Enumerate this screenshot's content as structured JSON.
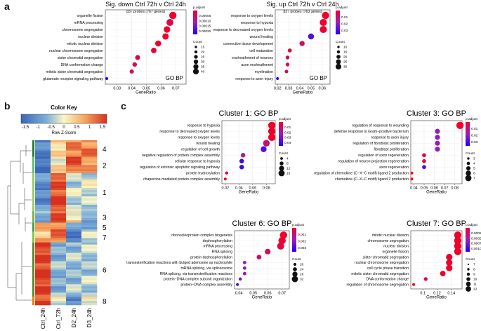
{
  "panel_labels": [
    "a",
    "b",
    "c"
  ],
  "colors": {
    "low": "#1d00ff",
    "mid": "#9b1fb5",
    "high": "#f0002a"
  },
  "chart_data": [
    {
      "id": "a_down",
      "type": "scatter",
      "subtype": "dotplot",
      "title": "Sig. down Ctrl 72h v Ctrl 24h",
      "subtitle": "837 probes (767 genes)",
      "xlabel": "GeneRatio",
      "annotation": "GO BP",
      "xlim": [
        0.022,
        0.077
      ],
      "xticks": [
        0.03,
        0.04,
        0.05,
        0.06,
        0.07
      ],
      "categories": [
        "organelle fission",
        "mRNA processing",
        "chromosome segregation",
        "nuclear division",
        "mitotic nuclear division",
        "nuclear chromosome segregation",
        "sister chromatid segregation",
        "DNA conformation change",
        "mitotic sister chromatid segregation",
        "glutamate receptor signaling pathway"
      ],
      "x": [
        0.068,
        0.066,
        0.064,
        0.063,
        0.058,
        0.055,
        0.044,
        0.042,
        0.04,
        0.023
      ],
      "count": [
        43,
        41,
        38,
        37,
        35,
        32,
        28,
        26,
        24,
        15
      ],
      "p_adjust": [
        1e-05,
        3e-05,
        1e-05,
        1e-05,
        1e-05,
        2e-05,
        3e-05,
        4e-05,
        4e-05,
        0.00022
      ],
      "color_legend": {
        "title": "p.adjust",
        "ticks": [
          "0.00005",
          "0.00010",
          "0.00015",
          "0.00020"
        ],
        "range": [
          1e-05,
          0.00022
        ]
      },
      "size_legend": {
        "title": "Count",
        "values": [
          15,
          20,
          25,
          30,
          35,
          40
        ]
      }
    },
    {
      "id": "a_up",
      "type": "scatter",
      "subtype": "dotplot",
      "title": "Sig. up Ctrl 72h v Ctrl 24h",
      "subtitle": "827 probes (763 genes)",
      "xlabel": "GeneRatio",
      "annotation": "GO BP",
      "xlim": [
        0.018,
        0.067
      ],
      "xticks": [
        0.02,
        0.03,
        0.04,
        0.05,
        0.06
      ],
      "categories": [
        "response to oxygen levels",
        "response to hypoxia",
        "response to decreased oxygen levels",
        "wound healing",
        "connective tissue development",
        "cell maturation",
        "ensheathment of neurons",
        "axon ensheathment",
        "myelination",
        "response to axon injury"
      ],
      "x": [
        0.063,
        0.061,
        0.061,
        0.05,
        0.042,
        0.031,
        0.029,
        0.029,
        0.028,
        0.02
      ],
      "count": [
        33,
        32,
        32,
        26,
        22,
        16,
        15,
        15,
        14,
        10
      ],
      "p_adjust": [
        0.001,
        0.002,
        0.002,
        0.03,
        0.008,
        0.004,
        0.006,
        0.006,
        0.008,
        0.037
      ],
      "color_legend": {
        "title": "p.adjust",
        "ticks": [
          "0.01",
          "0.02",
          "0.03"
        ],
        "range": [
          0.001,
          0.038
        ]
      },
      "size_legend": {
        "title": "Count",
        "values": [
          10,
          15,
          20,
          25,
          30
        ]
      }
    },
    {
      "id": "c1",
      "type": "scatter",
      "subtype": "dotplot",
      "title": "Cluster 1: GO BP",
      "xlabel": "GeneRatio",
      "xlim": [
        0.015,
        0.093
      ],
      "xticks": [
        0.02,
        0.04,
        0.06,
        0.08
      ],
      "categories": [
        "response to hypoxia",
        "response to decreased oxygen levels",
        "response to oxygen levels",
        "wound healing",
        "regulation of cell growth",
        "negative regulation of protein complex assembly",
        "cellular response to hypoxia",
        "regulation of extrinsic apoptotic signaling pathway",
        "protein hydroxylation",
        "chaperone-mediated protein complex assembly"
      ],
      "x": [
        0.088,
        0.088,
        0.088,
        0.08,
        0.076,
        0.046,
        0.044,
        0.044,
        0.022,
        0.02
      ],
      "count": [
        16,
        16,
        16,
        14,
        12,
        8,
        8,
        8,
        4,
        3
      ],
      "p_adjust": [
        0.001,
        0.001,
        0.001,
        0.012,
        0.035,
        0.018,
        0.04,
        0.04,
        0.002,
        0.002
      ],
      "color_legend": {
        "title": "p.adjust",
        "ticks": [
          "0.01",
          "0.02",
          "0.03",
          "0.04"
        ],
        "range": [
          0.001,
          0.045
        ]
      },
      "size_legend": {
        "title": "Count",
        "values": [
          4,
          8,
          12,
          16
        ]
      }
    },
    {
      "id": "c3",
      "type": "scatter",
      "subtype": "dotplot",
      "title": "Cluster 3: GO BP",
      "xlabel": "GeneRatio",
      "xlim": [
        0.037,
        0.087
      ],
      "xticks": [
        0.04,
        0.05,
        0.06,
        0.07,
        0.08
      ],
      "categories": [
        "regulation of response to wounding",
        "defense response to Gram−positive bacterium",
        "response to axon injury",
        "regulation of fibroblast proliferation",
        "fibroblast proliferation",
        "regulation of axon regeneration",
        "regulation of neuron projection regeneration",
        "axon regeneration",
        "regulation of chemokine (C−X−C motif) ligand 2 production",
        "chemokine (C−X−C motif) ligand 2 production"
      ],
      "x": [
        0.085,
        0.063,
        0.063,
        0.063,
        0.063,
        0.05,
        0.05,
        0.05,
        0.038,
        0.038
      ],
      "count": [
        7,
        5,
        5,
        5,
        5,
        4,
        4,
        4,
        3,
        3
      ],
      "p_adjust": [
        0.003,
        0.02,
        0.02,
        0.02,
        0.02,
        0.003,
        0.003,
        0.03,
        0.003,
        0.003
      ],
      "color_legend": {
        "title": "p.adjust",
        "ticks": [
          "0.01",
          "0.02",
          "0.03"
        ],
        "range": [
          0.003,
          0.035
        ]
      },
      "size_legend": {
        "title": "Count",
        "values": [
          3,
          4,
          5,
          6,
          7
        ]
      }
    },
    {
      "id": "c6",
      "type": "scatter",
      "subtype": "dotplot",
      "title": "Cluster 6: GO BP",
      "xlabel": "GeneRatio",
      "xlim": [
        0.037,
        0.075
      ],
      "xticks": [
        0.04,
        0.05,
        0.06,
        0.07
      ],
      "categories": [
        "ribonucleoprotein complex biogenesis",
        "dephosphorylation",
        "mRNA processing",
        "RNA splicing",
        "protein dephosphorylation",
        "transesterification reactions with bulged adenosine as nucleophile",
        "mRNA splicing, via spliceosome",
        "RNA splicing, via transesterification reactions",
        "protein−DNA complex subunit organization",
        "protein−DNA complex assembly"
      ],
      "x": [
        0.071,
        0.07,
        0.069,
        0.06,
        0.054,
        0.044,
        0.044,
        0.044,
        0.041,
        0.039
      ],
      "count": [
        32,
        32,
        31,
        27,
        24,
        20,
        20,
        20,
        19,
        18
      ],
      "p_adjust": [
        0.0002,
        0.0002,
        0.0005,
        0.0008,
        0.0009,
        0.002,
        0.002,
        0.002,
        0.0025,
        0.003
      ],
      "color_legend": {
        "title": "p.adjust",
        "ticks": [
          "0.001",
          "0.002",
          "0.003"
        ],
        "range": [
          0.0002,
          0.0035
        ]
      },
      "size_legend": {
        "title": "Count",
        "values": [
          20,
          24,
          28,
          32
        ]
      }
    },
    {
      "id": "c7",
      "type": "scatter",
      "subtype": "dotplot",
      "title": "Cluster 7: GO BP",
      "xlabel": "GeneRatio",
      "xlim": [
        0.083,
        0.155
      ],
      "xticks": [
        0.1,
        0.12,
        0.14
      ],
      "categories": [
        "mitotic nuclear division",
        "chromosome segregation",
        "nuclear division",
        "organelle fission",
        "sister chromatid segregation",
        "nuclear chromosome segregation",
        "cell cycle phase transition",
        "mitotic sister chromatid segregation",
        "DNA conformation change",
        "regulation of chromosome segregation"
      ],
      "x": [
        0.149,
        0.149,
        0.149,
        0.149,
        0.137,
        0.137,
        0.137,
        0.128,
        0.104,
        0.087
      ],
      "count": [
        13,
        13,
        13,
        13,
        12,
        12,
        12,
        11,
        9,
        8
      ],
      "p_adjust": [
        1e-05,
        1e-05,
        1e-05,
        1e-05,
        2e-05,
        2e-05,
        2e-05,
        4e-05,
        0.0001,
        2e-05
      ],
      "color_legend": {
        "title": "p.adjust",
        "ticks": [
          "0.00025",
          "0.00050",
          "0.00075",
          "0.00100"
        ],
        "range": [
          1e-05,
          0.0011
        ]
      },
      "size_legend": {
        "title": "Count",
        "values": [
          7,
          8,
          9,
          10,
          11,
          12
        ]
      }
    },
    {
      "id": "b_heatmap",
      "type": "heatmap",
      "color_key_title": "Color Key",
      "scale_label": "Row Z-Score",
      "scale_ticks": [
        "-1.5",
        "-1",
        "-0.5",
        "0",
        "0.5",
        "1",
        "1.5"
      ],
      "columns": [
        "Ctrl_24h",
        "Ctrl_72h",
        "D2_24h",
        "D3_24h"
      ],
      "clusters": [
        {
          "label": "4",
          "pattern": [
            -1.2,
            0.3,
            1.0,
            0.9
          ]
        },
        {
          "label": "2",
          "pattern": [
            -1.3,
            0.1,
            1.1,
            0.8
          ]
        },
        {
          "label": "1",
          "pattern": [
            -1.0,
            1.3,
            -0.3,
            -0.2
          ]
        },
        {
          "label": "3",
          "pattern": [
            -0.6,
            1.3,
            0.2,
            -0.9
          ]
        },
        {
          "label": "5",
          "pattern": [
            0.6,
            1.0,
            -1.0,
            -0.6
          ]
        },
        {
          "label": "7",
          "pattern": [
            0.5,
            0.9,
            -1.2,
            -0.1
          ]
        },
        {
          "label": "6",
          "pattern": [
            1.4,
            -0.6,
            -0.5,
            -0.4
          ]
        },
        {
          "label": "8",
          "pattern": [
            1.3,
            -0.2,
            -1.0,
            0.1
          ]
        }
      ]
    }
  ]
}
